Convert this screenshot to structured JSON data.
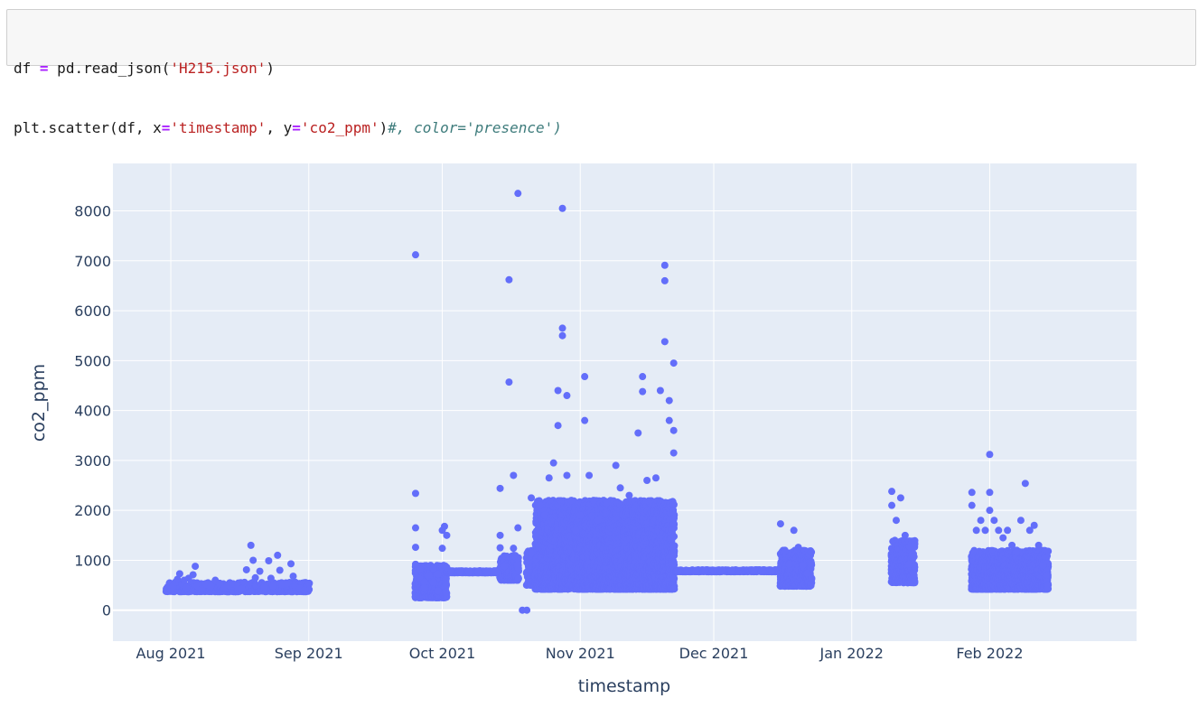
{
  "code_cell": {
    "line1": [
      {
        "text": "df ",
        "cls": ""
      },
      {
        "text": "=",
        "cls": "tok-op"
      },
      {
        "text": " pd.read_json(",
        "cls": ""
      },
      {
        "text": "'H215.json'",
        "cls": "tok-str"
      },
      {
        "text": ")",
        "cls": ""
      }
    ],
    "line2": [
      {
        "text": "plt.scatter(df, x",
        "cls": ""
      },
      {
        "text": "=",
        "cls": "tok-op"
      },
      {
        "text": "'timestamp'",
        "cls": "tok-str"
      },
      {
        "text": ", y",
        "cls": ""
      },
      {
        "text": "=",
        "cls": "tok-op"
      },
      {
        "text": "'co2_ppm'",
        "cls": "tok-str"
      },
      {
        "text": ")",
        "cls": ""
      },
      {
        "text": "#, color='presence')",
        "cls": "tok-cmt"
      }
    ]
  },
  "chart_data": {
    "type": "scatter",
    "xlabel": "timestamp",
    "ylabel": "co2_ppm",
    "xlim": [
      "2021-07-19",
      "2022-03-06"
    ],
    "ylim": [
      -620,
      8950
    ],
    "y_ticks": [
      0,
      1000,
      2000,
      3000,
      4000,
      5000,
      6000,
      7000,
      8000
    ],
    "x_ticks": [
      {
        "date": "2021-08-01",
        "label": "Aug 2021"
      },
      {
        "date": "2021-09-01",
        "label": "Sep 2021"
      },
      {
        "date": "2021-10-01",
        "label": "Oct 2021"
      },
      {
        "date": "2021-11-01",
        "label": "Nov 2021"
      },
      {
        "date": "2021-12-01",
        "label": "Dec 2021"
      },
      {
        "date": "2022-01-01",
        "label": "Jan 2022"
      },
      {
        "date": "2022-02-01",
        "label": "Feb 2022"
      }
    ],
    "grid": true,
    "marker_color": "#636efa",
    "bg_color": "#e5ecf6",
    "series": [
      {
        "points": [
          [
            "2021-08-01",
            420
          ],
          [
            "2021-08-01T12:00",
            480
          ],
          [
            "2021-08-02",
            560
          ],
          [
            "2021-08-02T12:00",
            620
          ],
          [
            "2021-08-03",
            730
          ],
          [
            "2021-08-03T12:00",
            520
          ],
          [
            "2021-08-04",
            600
          ],
          [
            "2021-08-04T12:00",
            450
          ],
          [
            "2021-08-05",
            640
          ],
          [
            "2021-08-06",
            710
          ],
          [
            "2021-08-06T12:00",
            880
          ],
          [
            "2021-08-07",
            480
          ],
          [
            "2021-08-08",
            430
          ],
          [
            "2021-08-09",
            510
          ],
          [
            "2021-08-10",
            480
          ],
          [
            "2021-08-11",
            600
          ],
          [
            "2021-08-12",
            540
          ],
          [
            "2021-08-13",
            440
          ],
          [
            "2021-08-14",
            500
          ],
          [
            "2021-08-15",
            530
          ],
          [
            "2021-08-16",
            470
          ],
          [
            "2021-08-17",
            430
          ],
          [
            "2021-08-18",
            810
          ],
          [
            "2021-08-19",
            1300
          ],
          [
            "2021-08-19T12:00",
            1000
          ],
          [
            "2021-08-20",
            650
          ],
          [
            "2021-08-21",
            780
          ],
          [
            "2021-08-22",
            460
          ],
          [
            "2021-08-23",
            990
          ],
          [
            "2021-08-23T12:00",
            640
          ],
          [
            "2021-08-24",
            480
          ],
          [
            "2021-08-25",
            1100
          ],
          [
            "2021-08-25T12:00",
            800
          ],
          [
            "2021-08-26",
            510
          ],
          [
            "2021-08-27",
            530
          ],
          [
            "2021-08-28",
            930
          ],
          [
            "2021-08-28T12:00",
            680
          ],
          [
            "2021-08-29",
            470
          ],
          [
            "2021-08-30",
            440
          ],
          [
            "2021-08-31",
            400
          ],
          [
            "2021-09-25",
            7120
          ],
          [
            "2021-09-25",
            2340
          ],
          [
            "2021-09-25",
            1650
          ],
          [
            "2021-09-25",
            1260
          ],
          [
            "2021-09-25",
            920
          ],
          [
            "2021-09-26",
            820
          ],
          [
            "2021-09-26",
            630
          ],
          [
            "2021-09-27",
            560
          ],
          [
            "2021-09-27",
            450
          ],
          [
            "2021-09-28",
            700
          ],
          [
            "2021-09-29",
            840
          ],
          [
            "2021-09-29",
            560
          ],
          [
            "2021-09-30",
            720
          ],
          [
            "2021-09-30",
            390
          ],
          [
            "2021-10-01",
            1240
          ],
          [
            "2021-10-01",
            870
          ],
          [
            "2021-10-01",
            1600
          ],
          [
            "2021-10-02",
            1500
          ],
          [
            "2021-10-02",
            860
          ],
          [
            "2021-10-01T12:00",
            1680
          ],
          [
            "2021-10-03",
            770
          ],
          [
            "2021-10-05",
            770
          ],
          [
            "2021-10-07",
            770
          ],
          [
            "2021-10-09",
            770
          ],
          [
            "2021-10-11",
            770
          ],
          [
            "2021-10-13",
            770
          ],
          [
            "2021-10-14",
            2440
          ],
          [
            "2021-10-14",
            1500
          ],
          [
            "2021-10-14",
            1250
          ],
          [
            "2021-10-15",
            880
          ],
          [
            "2021-10-16",
            6620
          ],
          [
            "2021-10-16",
            4570
          ],
          [
            "2021-10-17",
            2700
          ],
          [
            "2021-10-17",
            1240
          ],
          [
            "2021-10-18",
            8350
          ],
          [
            "2021-10-18",
            1650
          ],
          [
            "2021-10-18",
            920
          ],
          [
            "2021-10-19",
            0
          ],
          [
            "2021-10-20",
            0
          ],
          [
            "2021-10-21",
            2250
          ],
          [
            "2021-10-21",
            1150
          ],
          [
            "2021-10-22",
            1480
          ],
          [
            "2021-10-23",
            2100
          ],
          [
            "2021-10-24",
            1900
          ],
          [
            "2021-10-25",
            2650
          ],
          [
            "2021-10-26",
            2950
          ],
          [
            "2021-10-27",
            4400
          ],
          [
            "2021-10-27",
            3700
          ],
          [
            "2021-10-28",
            5650
          ],
          [
            "2021-10-28",
            5500
          ],
          [
            "2021-10-28",
            8050
          ],
          [
            "2021-10-29",
            4300
          ],
          [
            "2021-10-29",
            2700
          ],
          [
            "2021-10-30",
            2200
          ],
          [
            "2021-10-31",
            1600
          ],
          [
            "2021-11-01",
            1900
          ],
          [
            "2021-11-02",
            4680
          ],
          [
            "2021-11-02",
            3800
          ],
          [
            "2021-11-03",
            2700
          ],
          [
            "2021-11-04",
            2200
          ],
          [
            "2021-11-05",
            1800
          ],
          [
            "2021-11-07",
            2150
          ],
          [
            "2021-11-09",
            2900
          ],
          [
            "2021-11-10",
            2450
          ],
          [
            "2021-11-12",
            2300
          ],
          [
            "2021-11-14",
            3550
          ],
          [
            "2021-11-15",
            4680
          ],
          [
            "2021-11-15",
            4380
          ],
          [
            "2021-11-16",
            2600
          ],
          [
            "2021-11-18",
            2650
          ],
          [
            "2021-11-19",
            4400
          ],
          [
            "2021-11-20",
            6910
          ],
          [
            "2021-11-20",
            6600
          ],
          [
            "2021-11-20",
            5380
          ],
          [
            "2021-11-21",
            4200
          ],
          [
            "2021-11-21",
            3800
          ],
          [
            "2021-11-22",
            4950
          ],
          [
            "2021-11-22",
            3600
          ],
          [
            "2021-11-22",
            3150
          ],
          [
            "2021-11-23",
            790
          ],
          [
            "2021-11-25",
            790
          ],
          [
            "2021-11-27",
            790
          ],
          [
            "2021-11-29",
            790
          ],
          [
            "2021-12-01",
            790
          ],
          [
            "2021-12-03",
            790
          ],
          [
            "2021-12-05",
            790
          ],
          [
            "2021-12-10",
            790
          ],
          [
            "2021-12-12",
            790
          ],
          [
            "2021-12-14",
            790
          ],
          [
            "2021-12-16",
            1730
          ],
          [
            "2021-12-17",
            1200
          ],
          [
            "2021-12-18",
            920
          ],
          [
            "2021-12-19",
            1600
          ],
          [
            "2021-12-20",
            1260
          ],
          [
            "2021-12-21",
            900
          ],
          [
            "2021-12-22",
            740
          ],
          [
            "2021-12-23",
            640
          ],
          [
            "2022-01-10",
            2380
          ],
          [
            "2022-01-10",
            2100
          ],
          [
            "2022-01-11",
            1800
          ],
          [
            "2022-01-12",
            2250
          ],
          [
            "2022-01-13",
            1500
          ],
          [
            "2022-01-14",
            1270
          ],
          [
            "2022-01-14",
            920
          ],
          [
            "2022-01-15",
            700
          ],
          [
            "2022-01-28",
            2360
          ],
          [
            "2022-01-28",
            2100
          ],
          [
            "2022-01-29",
            1600
          ],
          [
            "2022-01-30",
            1800
          ],
          [
            "2022-01-31",
            1600
          ],
          [
            "2022-02-01",
            2000
          ],
          [
            "2022-02-01",
            3120
          ],
          [
            "2022-02-01",
            2360
          ],
          [
            "2022-02-02",
            1800
          ],
          [
            "2022-02-03",
            1600
          ],
          [
            "2022-02-04",
            1450
          ],
          [
            "2022-02-05",
            1600
          ],
          [
            "2022-02-06",
            1300
          ],
          [
            "2022-02-07",
            1160
          ],
          [
            "2022-02-08",
            1800
          ],
          [
            "2022-02-09",
            2540
          ],
          [
            "2022-02-10",
            1600
          ],
          [
            "2022-02-11",
            1700
          ],
          [
            "2022-02-12",
            1300
          ],
          [
            "2022-02-13",
            900
          ],
          [
            "2022-02-14",
            700
          ]
        ]
      }
    ],
    "dense_bands": [
      {
        "from": "2021-07-31",
        "to": "2021-09-01",
        "min": 370,
        "max": 560,
        "density": 3
      },
      {
        "from": "2021-09-25",
        "to": "2021-10-02",
        "min": 250,
        "max": 900,
        "density": 16
      },
      {
        "from": "2021-10-02",
        "to": "2021-10-14",
        "min": 750,
        "max": 790,
        "density": 4
      },
      {
        "from": "2021-10-14",
        "to": "2021-10-18",
        "min": 600,
        "max": 1100,
        "density": 10
      },
      {
        "from": "2021-10-20",
        "to": "2021-10-22",
        "min": 500,
        "max": 1200,
        "density": 10
      },
      {
        "from": "2021-10-22",
        "to": "2021-11-22",
        "min": 420,
        "max": 2200,
        "density": 30
      },
      {
        "from": "2021-11-22",
        "to": "2021-12-16",
        "min": 770,
        "max": 810,
        "density": 3
      },
      {
        "from": "2021-12-16",
        "to": "2021-12-23",
        "min": 480,
        "max": 1200,
        "density": 14
      },
      {
        "from": "2022-01-10",
        "to": "2022-01-15",
        "min": 550,
        "max": 1400,
        "density": 16
      },
      {
        "from": "2022-01-28",
        "to": "2022-02-14",
        "min": 420,
        "max": 1200,
        "density": 20
      }
    ]
  }
}
